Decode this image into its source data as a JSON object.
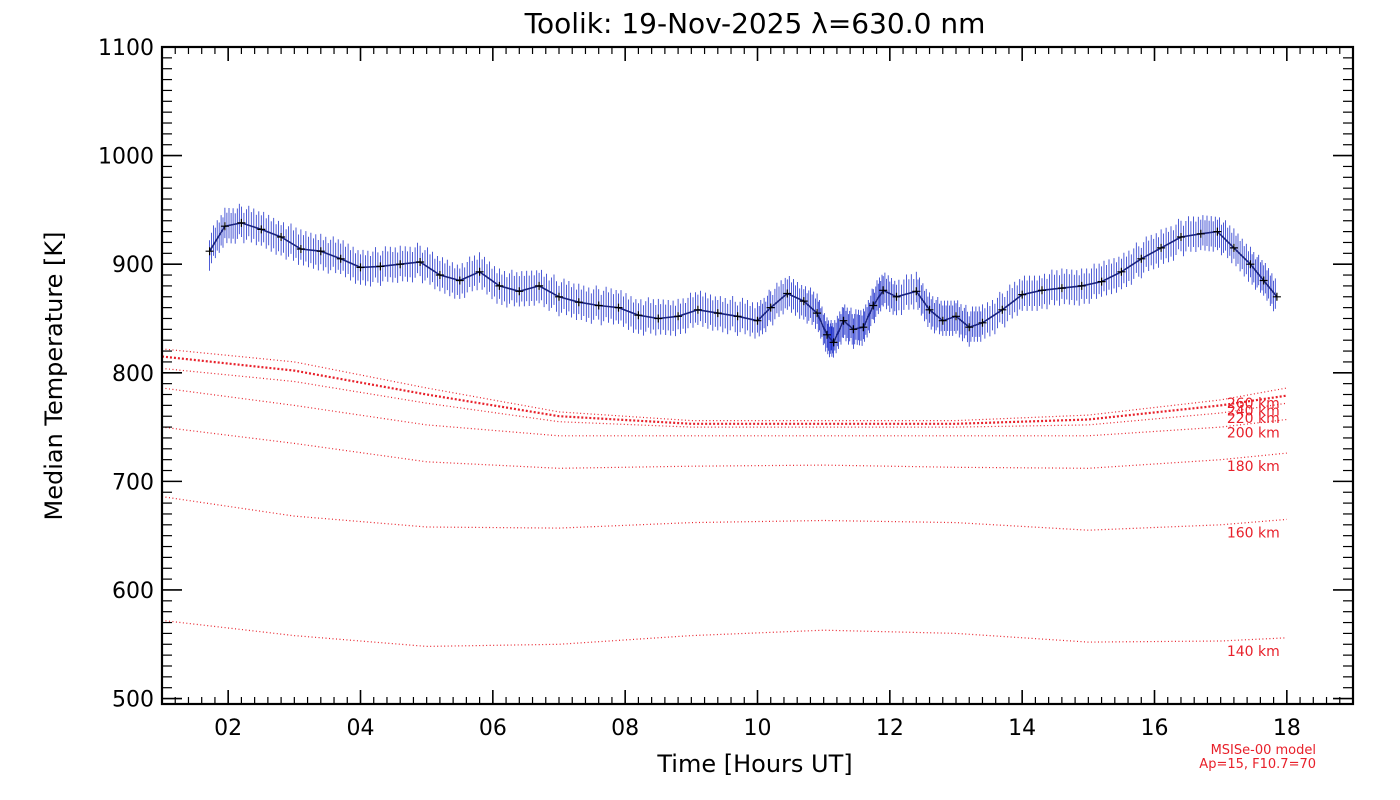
{
  "chart_data": {
    "type": "line",
    "title": "Toolik: 19-Nov-2025 λ=630.0 nm",
    "xlabel": "Time [Hours UT]",
    "ylabel": "Median Temperature [K]",
    "xlim": [
      1.0,
      19.0
    ],
    "ylim": [
      495,
      1100
    ],
    "x_ticks": [
      2,
      4,
      6,
      8,
      10,
      12,
      14,
      16,
      18
    ],
    "x_tick_labels": [
      "02",
      "04",
      "06",
      "08",
      "10",
      "12",
      "14",
      "16",
      "18"
    ],
    "y_ticks": [
      500,
      600,
      700,
      800,
      900,
      1000,
      1100
    ],
    "y_tick_labels": [
      "500",
      "600",
      "700",
      "800",
      "900",
      "1000",
      "1100"
    ],
    "colors": {
      "measured_line": "#1a237e",
      "error_bars": "#2233cc",
      "markers": "#000000",
      "model": "#e8202a"
    },
    "series": [
      {
        "name": "Median temperature",
        "x": [
          1.72,
          1.95,
          2.2,
          2.5,
          2.8,
          3.1,
          3.4,
          3.7,
          4.0,
          4.3,
          4.6,
          4.9,
          5.2,
          5.5,
          5.8,
          6.1,
          6.4,
          6.7,
          7.0,
          7.3,
          7.6,
          7.9,
          8.2,
          8.5,
          8.8,
          9.1,
          9.4,
          9.7,
          10.0,
          10.2,
          10.45,
          10.7,
          10.9,
          11.05,
          11.15,
          11.3,
          11.45,
          11.6,
          11.75,
          11.9,
          12.1,
          12.4,
          12.6,
          12.8,
          13.0,
          13.2,
          13.4,
          13.7,
          14.0,
          14.3,
          14.6,
          14.9,
          15.2,
          15.5,
          15.8,
          16.1,
          16.4,
          16.7,
          16.95,
          17.2,
          17.45,
          17.65,
          17.85
        ],
        "values": [
          912,
          935,
          938,
          932,
          925,
          914,
          912,
          905,
          897,
          898,
          900,
          902,
          890,
          885,
          893,
          880,
          875,
          880,
          870,
          865,
          862,
          860,
          853,
          850,
          852,
          858,
          855,
          852,
          848,
          860,
          873,
          866,
          855,
          835,
          828,
          848,
          840,
          842,
          862,
          876,
          870,
          875,
          858,
          848,
          852,
          842,
          846,
          858,
          872,
          876,
          878,
          880,
          884,
          893,
          905,
          915,
          925,
          928,
          930,
          915,
          900,
          885,
          870
        ]
      }
    ],
    "model_series": [
      {
        "name": "140 km",
        "label": "140 km",
        "x": [
          1,
          3,
          5,
          7,
          9,
          11,
          13,
          15,
          17,
          18
        ],
        "values": [
          572,
          558,
          548,
          550,
          558,
          563,
          560,
          552,
          553,
          556
        ]
      },
      {
        "name": "160 km",
        "label": "160 km",
        "x": [
          1,
          3,
          5,
          7,
          9,
          11,
          13,
          15,
          17,
          18
        ],
        "values": [
          686,
          668,
          658,
          657,
          662,
          664,
          662,
          655,
          660,
          665
        ]
      },
      {
        "name": "180 km",
        "label": "180 km",
        "x": [
          1,
          3,
          5,
          7,
          9,
          11,
          13,
          15,
          17,
          18
        ],
        "values": [
          750,
          735,
          718,
          712,
          714,
          715,
          713,
          712,
          720,
          726
        ]
      },
      {
        "name": "200 km",
        "label": "200 km",
        "x": [
          1,
          3,
          5,
          7,
          9,
          11,
          13,
          15,
          17,
          18
        ],
        "values": [
          786,
          770,
          752,
          742,
          742,
          742,
          742,
          742,
          750,
          757
        ]
      },
      {
        "name": "220 km",
        "label": "220 km",
        "x": [
          1,
          3,
          5,
          7,
          9,
          11,
          13,
          15,
          17,
          18
        ],
        "values": [
          804,
          792,
          772,
          755,
          750,
          750,
          750,
          752,
          763,
          772
        ]
      },
      {
        "name": "240 km",
        "label": "240 km",
        "x": [
          1,
          3,
          5,
          7,
          9,
          11,
          13,
          15,
          17,
          18
        ],
        "values": [
          815,
          802,
          780,
          760,
          753,
          753,
          753,
          757,
          770,
          779
        ]
      },
      {
        "name": "260 km",
        "label": "260 km",
        "x": [
          1,
          3,
          5,
          7,
          9,
          11,
          13,
          15,
          17,
          18
        ],
        "values": [
          822,
          810,
          786,
          764,
          756,
          756,
          756,
          761,
          775,
          786
        ]
      }
    ],
    "model_note_line1": "MSISe-00 model",
    "model_note_line2": "Ap=15, F10.7=70"
  }
}
